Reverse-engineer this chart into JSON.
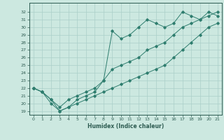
{
  "xlabel": "Humidex (Indice chaleur)",
  "background_color": "#cce8e0",
  "grid_color": "#aacfc8",
  "line_color": "#2e7d6e",
  "x": [
    0,
    1,
    2,
    3,
    4,
    5,
    6,
    7,
    8,
    9,
    10,
    11,
    12,
    13,
    14,
    15,
    16,
    17,
    18,
    19,
    20,
    21
  ],
  "line_top": [
    22,
    21.5,
    20.5,
    19,
    19.5,
    20.5,
    21,
    21.5,
    23,
    29.5,
    28.5,
    29,
    30,
    31,
    30.5,
    30,
    30.5,
    32,
    31.5,
    31,
    32,
    31.5
  ],
  "line_mid": [
    22,
    21.5,
    20.5,
    19.5,
    20.5,
    21,
    21.5,
    22,
    23,
    24.5,
    25,
    25.5,
    26,
    27,
    27.5,
    28,
    29,
    30,
    30.5,
    31,
    31.5,
    32
  ],
  "line_bot": [
    22,
    21.5,
    20,
    19,
    19.5,
    20,
    20.5,
    21,
    21.5,
    22,
    22.5,
    23,
    23.5,
    24,
    24.5,
    25,
    26,
    27,
    28,
    29,
    30,
    30.5
  ],
  "ylim": [
    18.5,
    33.2
  ],
  "xlim": [
    -0.5,
    21.5
  ],
  "yticks": [
    19,
    20,
    21,
    22,
    23,
    24,
    25,
    26,
    27,
    28,
    29,
    30,
    31,
    32
  ],
  "xticks": [
    0,
    1,
    2,
    3,
    4,
    5,
    6,
    7,
    8,
    9,
    10,
    11,
    12,
    13,
    14,
    15,
    16,
    17,
    18,
    19,
    20,
    21
  ]
}
